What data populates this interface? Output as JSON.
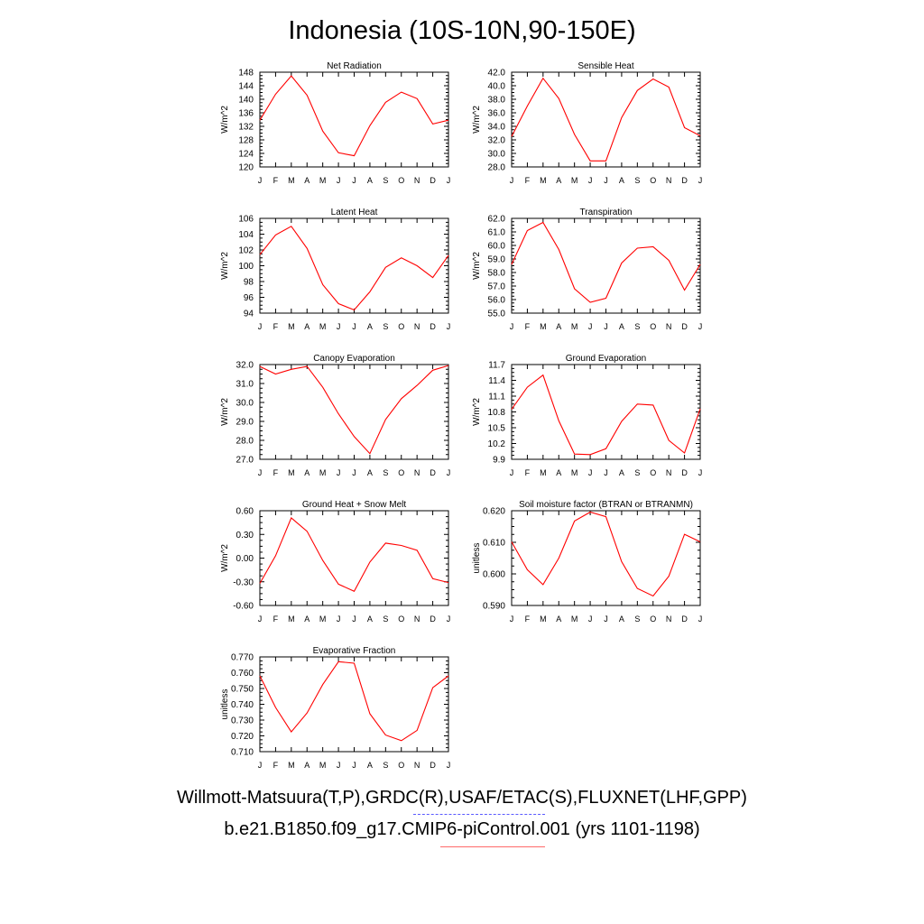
{
  "page": {
    "title": "Indonesia (10S-10N,90-150E)",
    "observations_label": "Willmott-Matsuura(T,P),GRDC(R),USAF/ETAC(S),FLUXNET(LHF,GPP)",
    "model_label": "b.e21.B1850.f09_g17.CMIP6-piControl.001 (yrs 1101-1198)",
    "observations_line_color": "#5a5aff",
    "model_line_color": "#ff0000"
  },
  "chart_data": [
    {
      "type": "line",
      "title": "Net Radiation",
      "ylabel": "W/m^2",
      "x": [
        "J",
        "F",
        "M",
        "A",
        "M",
        "J",
        "J",
        "A",
        "S",
        "O",
        "N",
        "D",
        "J"
      ],
      "ylim": [
        120,
        148
      ],
      "yticks": [
        "120",
        "124",
        "128",
        "132",
        "136",
        "140",
        "144",
        "148"
      ],
      "series": [
        {
          "values": [
            133.8,
            141.5,
            146.9,
            141.2,
            130.6,
            124.2,
            123.3,
            132.2,
            139.1,
            142.1,
            140.2,
            132.7,
            133.8
          ],
          "color": "#ff0000"
        }
      ]
    },
    {
      "type": "line",
      "title": "Sensible Heat",
      "ylabel": "W/m^2",
      "x": [
        "J",
        "F",
        "M",
        "A",
        "M",
        "J",
        "J",
        "A",
        "S",
        "O",
        "N",
        "D",
        "J"
      ],
      "ylim": [
        28.0,
        42.0
      ],
      "yticks": [
        "28.0",
        "30.0",
        "32.0",
        "34.0",
        "36.0",
        "38.0",
        "40.0",
        "42.0"
      ],
      "series": [
        {
          "values": [
            32.5,
            37.0,
            41.1,
            38.1,
            32.8,
            28.9,
            28.9,
            35.3,
            39.3,
            41.0,
            39.8,
            33.8,
            32.6
          ],
          "color": "#ff0000"
        }
      ]
    },
    {
      "type": "line",
      "title": "Latent Heat",
      "ylabel": "W/m^2",
      "x": [
        "J",
        "F",
        "M",
        "A",
        "M",
        "J",
        "J",
        "A",
        "S",
        "O",
        "N",
        "D",
        "J"
      ],
      "ylim": [
        94,
        106
      ],
      "yticks": [
        "94",
        "96",
        "98",
        "100",
        "102",
        "104",
        "106"
      ],
      "series": [
        {
          "values": [
            101.4,
            103.9,
            105.0,
            102.2,
            97.6,
            95.2,
            94.4,
            96.7,
            99.8,
            101.0,
            100.0,
            98.5,
            101.3
          ],
          "color": "#ff0000"
        }
      ]
    },
    {
      "type": "line",
      "title": "Transpiration",
      "ylabel": "W/m^2",
      "x": [
        "J",
        "F",
        "M",
        "A",
        "M",
        "J",
        "J",
        "A",
        "S",
        "O",
        "N",
        "D",
        "J"
      ],
      "ylim": [
        55.0,
        62.0
      ],
      "yticks": [
        "55.0",
        "56.0",
        "57.0",
        "58.0",
        "59.0",
        "60.0",
        "61.0",
        "62.0"
      ],
      "series": [
        {
          "values": [
            58.6,
            61.1,
            61.7,
            59.7,
            56.8,
            55.8,
            56.1,
            58.7,
            59.8,
            59.9,
            58.9,
            56.7,
            58.6
          ],
          "color": "#ff0000"
        }
      ]
    },
    {
      "type": "line",
      "title": "Canopy Evaporation",
      "ylabel": "W/m^2",
      "x": [
        "J",
        "F",
        "M",
        "A",
        "M",
        "J",
        "J",
        "A",
        "S",
        "O",
        "N",
        "D",
        "J"
      ],
      "ylim": [
        27.0,
        32.0
      ],
      "yticks": [
        "27.0",
        "28.0",
        "29.0",
        "30.0",
        "31.0",
        "32.0"
      ],
      "series": [
        {
          "values": [
            31.9,
            31.5,
            31.75,
            31.9,
            30.8,
            29.4,
            28.2,
            27.3,
            29.1,
            30.2,
            30.9,
            31.7,
            31.95
          ],
          "color": "#ff0000"
        }
      ]
    },
    {
      "type": "line",
      "title": "Ground Evaporation",
      "ylabel": "W/m^2",
      "x": [
        "J",
        "F",
        "M",
        "A",
        "M",
        "J",
        "J",
        "A",
        "S",
        "O",
        "N",
        "D",
        "J"
      ],
      "ylim": [
        9.9,
        11.7
      ],
      "yticks": [
        "9.9",
        "10.2",
        "10.5",
        "10.8",
        "11.1",
        "11.4",
        "11.7"
      ],
      "series": [
        {
          "values": [
            10.85,
            11.27,
            11.5,
            10.63,
            10.0,
            9.99,
            10.1,
            10.62,
            10.95,
            10.93,
            10.26,
            10.02,
            10.86
          ],
          "color": "#ff0000"
        }
      ]
    },
    {
      "type": "line",
      "title": "Ground Heat + Snow Melt",
      "ylabel": "W/m^2",
      "x": [
        "J",
        "F",
        "M",
        "A",
        "M",
        "J",
        "J",
        "A",
        "S",
        "O",
        "N",
        "D",
        "J"
      ],
      "ylim": [
        -0.6,
        0.6
      ],
      "yticks": [
        "-0.60",
        "-0.30",
        "0.00",
        "0.30",
        "0.60"
      ],
      "series": [
        {
          "values": [
            -0.32,
            0.03,
            0.51,
            0.34,
            -0.03,
            -0.33,
            -0.42,
            -0.05,
            0.19,
            0.16,
            0.1,
            -0.26,
            -0.31
          ],
          "color": "#ff0000"
        }
      ]
    },
    {
      "type": "line",
      "title": "Soil moisture factor (BTRAN or BTRANMN)",
      "ylabel": "unitless",
      "x": [
        "J",
        "F",
        "M",
        "A",
        "M",
        "J",
        "J",
        "A",
        "S",
        "O",
        "N",
        "D",
        "J"
      ],
      "ylim": [
        0.59,
        0.625
      ],
      "yticks": [
        "0.590",
        "0.600",
        "0.610",
        "0.620"
      ],
      "series": [
        {
          "values": [
            0.6135,
            0.6032,
            0.5977,
            0.6075,
            0.6212,
            0.6245,
            0.6228,
            0.6062,
            0.5963,
            0.5935,
            0.6008,
            0.6163,
            0.6135
          ],
          "color": "#ff0000"
        }
      ]
    },
    {
      "type": "line",
      "title": "Evaporative Fraction",
      "ylabel": "unitless",
      "x": [
        "J",
        "F",
        "M",
        "A",
        "M",
        "J",
        "J",
        "A",
        "S",
        "O",
        "N",
        "D",
        "J"
      ],
      "ylim": [
        0.71,
        0.77
      ],
      "yticks": [
        "0.710",
        "0.720",
        "0.730",
        "0.740",
        "0.750",
        "0.760",
        "0.770"
      ],
      "series": [
        {
          "values": [
            0.758,
            0.738,
            0.7225,
            0.7345,
            0.7525,
            0.767,
            0.766,
            0.734,
            0.7205,
            0.717,
            0.7235,
            0.7505,
            0.758
          ],
          "color": "#ff0000"
        }
      ]
    }
  ]
}
